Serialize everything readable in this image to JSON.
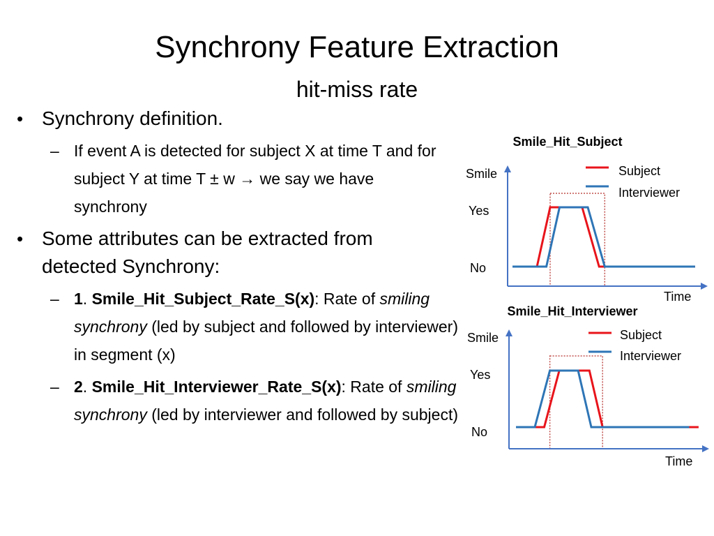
{
  "slide": {
    "title": "Synchrony Feature Extraction",
    "subtitle": "hit-miss rate"
  },
  "bullets": [
    {
      "text": "Synchrony definition.",
      "sub": [
        {
          "text": "If event A is detected for subject X  at time T and for subject Y at time T ± w → we say we have synchrony"
        }
      ]
    },
    {
      "text": "Some attributes can be extracted from detected Synchrony:",
      "sub": [
        {
          "num": "1",
          "feature": "Smile_Hit_Subject_Rate_S(x)",
          "desc_pre": ": Rate of ",
          "desc_em": "smiling synchrony",
          "desc_post": " (led by subject and followed by interviewer) in segment (x)"
        },
        {
          "num": "2",
          "feature": "Smile_Hit_Interviewer_Rate_S(x)",
          "desc_pre": ": Rate of ",
          "desc_em": "smiling synchrony",
          "desc_post": " (led by interviewer and followed by subject)"
        }
      ]
    }
  ],
  "colors": {
    "subject": "#e8141b",
    "interviewer": "#2e75b6",
    "window": "#c0504d",
    "axis": "#4472c4"
  },
  "charts": [
    {
      "title": "Smile_Hit_Subject",
      "y_axis_label": "Smile",
      "x_axis_label": "Time",
      "levels": [
        "Yes",
        "No"
      ],
      "legend": [
        "Subject",
        "Interviewer"
      ],
      "subject": {
        "rise_start": 0.13,
        "rise_end": 0.2,
        "fall_start": 0.37,
        "fall_end": 0.46,
        "end": 0.97
      },
      "interviewer": {
        "rise_start": 0.18,
        "rise_end": 0.25,
        "fall_start": 0.4,
        "fall_end": 0.49,
        "end": 0.97
      },
      "window": [
        0.2,
        0.49
      ]
    },
    {
      "title": "Smile_Hit_Interviewer",
      "y_axis_label": "Smile",
      "x_axis_label": "Time",
      "levels": [
        "Yes",
        "No"
      ],
      "legend": [
        "Subject",
        "Interviewer"
      ],
      "subject": {
        "rise_start": 0.15,
        "rise_end": 0.23,
        "fall_start": 0.39,
        "fall_end": 0.46,
        "end": 0.97
      },
      "interviewer": {
        "rise_start": 0.1,
        "rise_end": 0.18,
        "fall_start": 0.33,
        "fall_end": 0.4,
        "end": 0.92
      },
      "window": [
        0.18,
        0.46
      ]
    }
  ]
}
